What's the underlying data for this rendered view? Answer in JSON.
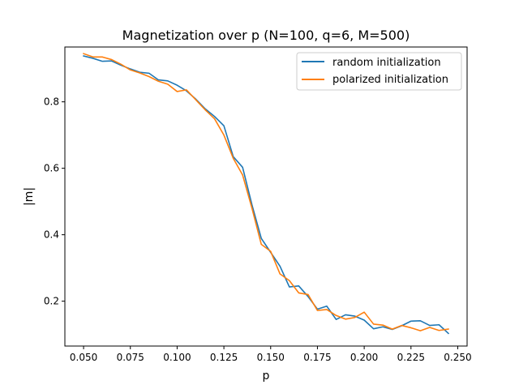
{
  "chart_data": {
    "type": "line",
    "title": "Magnetization over p (N=100, q=6, M=500)",
    "xlabel": "p",
    "ylabel": "|m|",
    "xlim": [
      0.04,
      0.255
    ],
    "ylim": [
      0.065,
      0.965
    ],
    "xticks": [
      0.05,
      0.075,
      0.1,
      0.125,
      0.15,
      0.175,
      0.2,
      0.225,
      0.25
    ],
    "xtick_labels": [
      "0.050",
      "0.075",
      "0.100",
      "0.125",
      "0.150",
      "0.175",
      "0.200",
      "0.225",
      "0.250"
    ],
    "yticks": [
      0.2,
      0.4,
      0.6,
      0.8
    ],
    "ytick_labels": [
      "0.2",
      "0.4",
      "0.6",
      "0.8"
    ],
    "grid": false,
    "legend_position": "top-right",
    "x": [
      0.05,
      0.055,
      0.06,
      0.065,
      0.07,
      0.075,
      0.08,
      0.085,
      0.09,
      0.095,
      0.1,
      0.105,
      0.11,
      0.115,
      0.12,
      0.125,
      0.13,
      0.135,
      0.14,
      0.145,
      0.15,
      0.155,
      0.16,
      0.165,
      0.17,
      0.175,
      0.18,
      0.185,
      0.19,
      0.195,
      0.2,
      0.205,
      0.21,
      0.215,
      0.22,
      0.225,
      0.23,
      0.235,
      0.24,
      0.245
    ],
    "series": [
      {
        "name": "random initialization",
        "color": "#1f77b4",
        "values": [
          0.938,
          0.931,
          0.922,
          0.923,
          0.91,
          0.899,
          0.889,
          0.886,
          0.866,
          0.863,
          0.85,
          0.833,
          0.808,
          0.779,
          0.756,
          0.728,
          0.635,
          0.603,
          0.49,
          0.389,
          0.347,
          0.305,
          0.243,
          0.246,
          0.214,
          0.176,
          0.185,
          0.145,
          0.159,
          0.155,
          0.143,
          0.117,
          0.123,
          0.115,
          0.126,
          0.14,
          0.141,
          0.127,
          0.129,
          0.103
        ]
      },
      {
        "name": "polarized initialization",
        "color": "#ff7f0e",
        "values": [
          0.945,
          0.935,
          0.935,
          0.927,
          0.913,
          0.896,
          0.887,
          0.876,
          0.862,
          0.853,
          0.831,
          0.836,
          0.806,
          0.776,
          0.749,
          0.7,
          0.63,
          0.58,
          0.48,
          0.371,
          0.35,
          0.282,
          0.262,
          0.225,
          0.22,
          0.172,
          0.175,
          0.157,
          0.146,
          0.151,
          0.167,
          0.131,
          0.128,
          0.116,
          0.127,
          0.12,
          0.111,
          0.121,
          0.112,
          0.116
        ]
      }
    ]
  }
}
